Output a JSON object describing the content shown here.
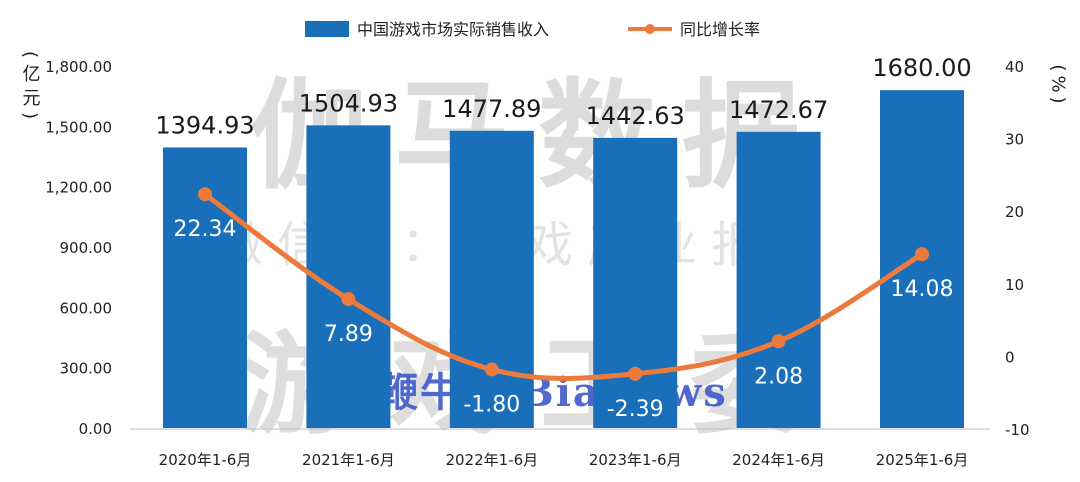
{
  "watermarks": {
    "main": "伽马数据",
    "sub": "微信号：游戏产业报告",
    "bottom": "游戏工委",
    "news": "鞭牛士 BiaNews"
  },
  "colors": {
    "bar": "#1a6fba",
    "line": "#ec7a3c",
    "bar_label": "#1a1a1a",
    "inner_label": "#ffffff",
    "axis_text": "#222222"
  },
  "chart_data": {
    "type": "bar",
    "categories": [
      "2020年1-6月",
      "2021年1-6月",
      "2022年1-6月",
      "2023年1-6月",
      "2024年1-6月",
      "2025年1-6月"
    ],
    "series": [
      {
        "name": "中国游戏市场实际销售收入",
        "type": "bar",
        "axis": "left",
        "values": [
          1394.93,
          1504.93,
          1477.89,
          1442.63,
          1472.67,
          1680.0
        ],
        "labels": [
          "1394.93",
          "1504.93",
          "1477.89",
          "1442.63",
          "1472.67",
          "1680.00"
        ]
      },
      {
        "name": "同比增长率",
        "type": "line",
        "axis": "right",
        "values": [
          22.34,
          7.89,
          -1.8,
          -2.39,
          2.08,
          14.08
        ],
        "labels": [
          "22.34",
          "7.89",
          "-1.80",
          "-2.39",
          "2.08",
          "14.08"
        ]
      }
    ],
    "ylabel": "(亿元)",
    "y2label": "(%)",
    "ylim": [
      0,
      1800
    ],
    "y2lim": [
      -10,
      40
    ],
    "yticks": [
      "0.00",
      "300.00",
      "600.00",
      "900.00",
      "1,200.00",
      "1,500.00",
      "1,800.00"
    ],
    "y2ticks": [
      "-10",
      "0",
      "10",
      "20",
      "30",
      "40"
    ],
    "legend": "top",
    "grid": false
  }
}
